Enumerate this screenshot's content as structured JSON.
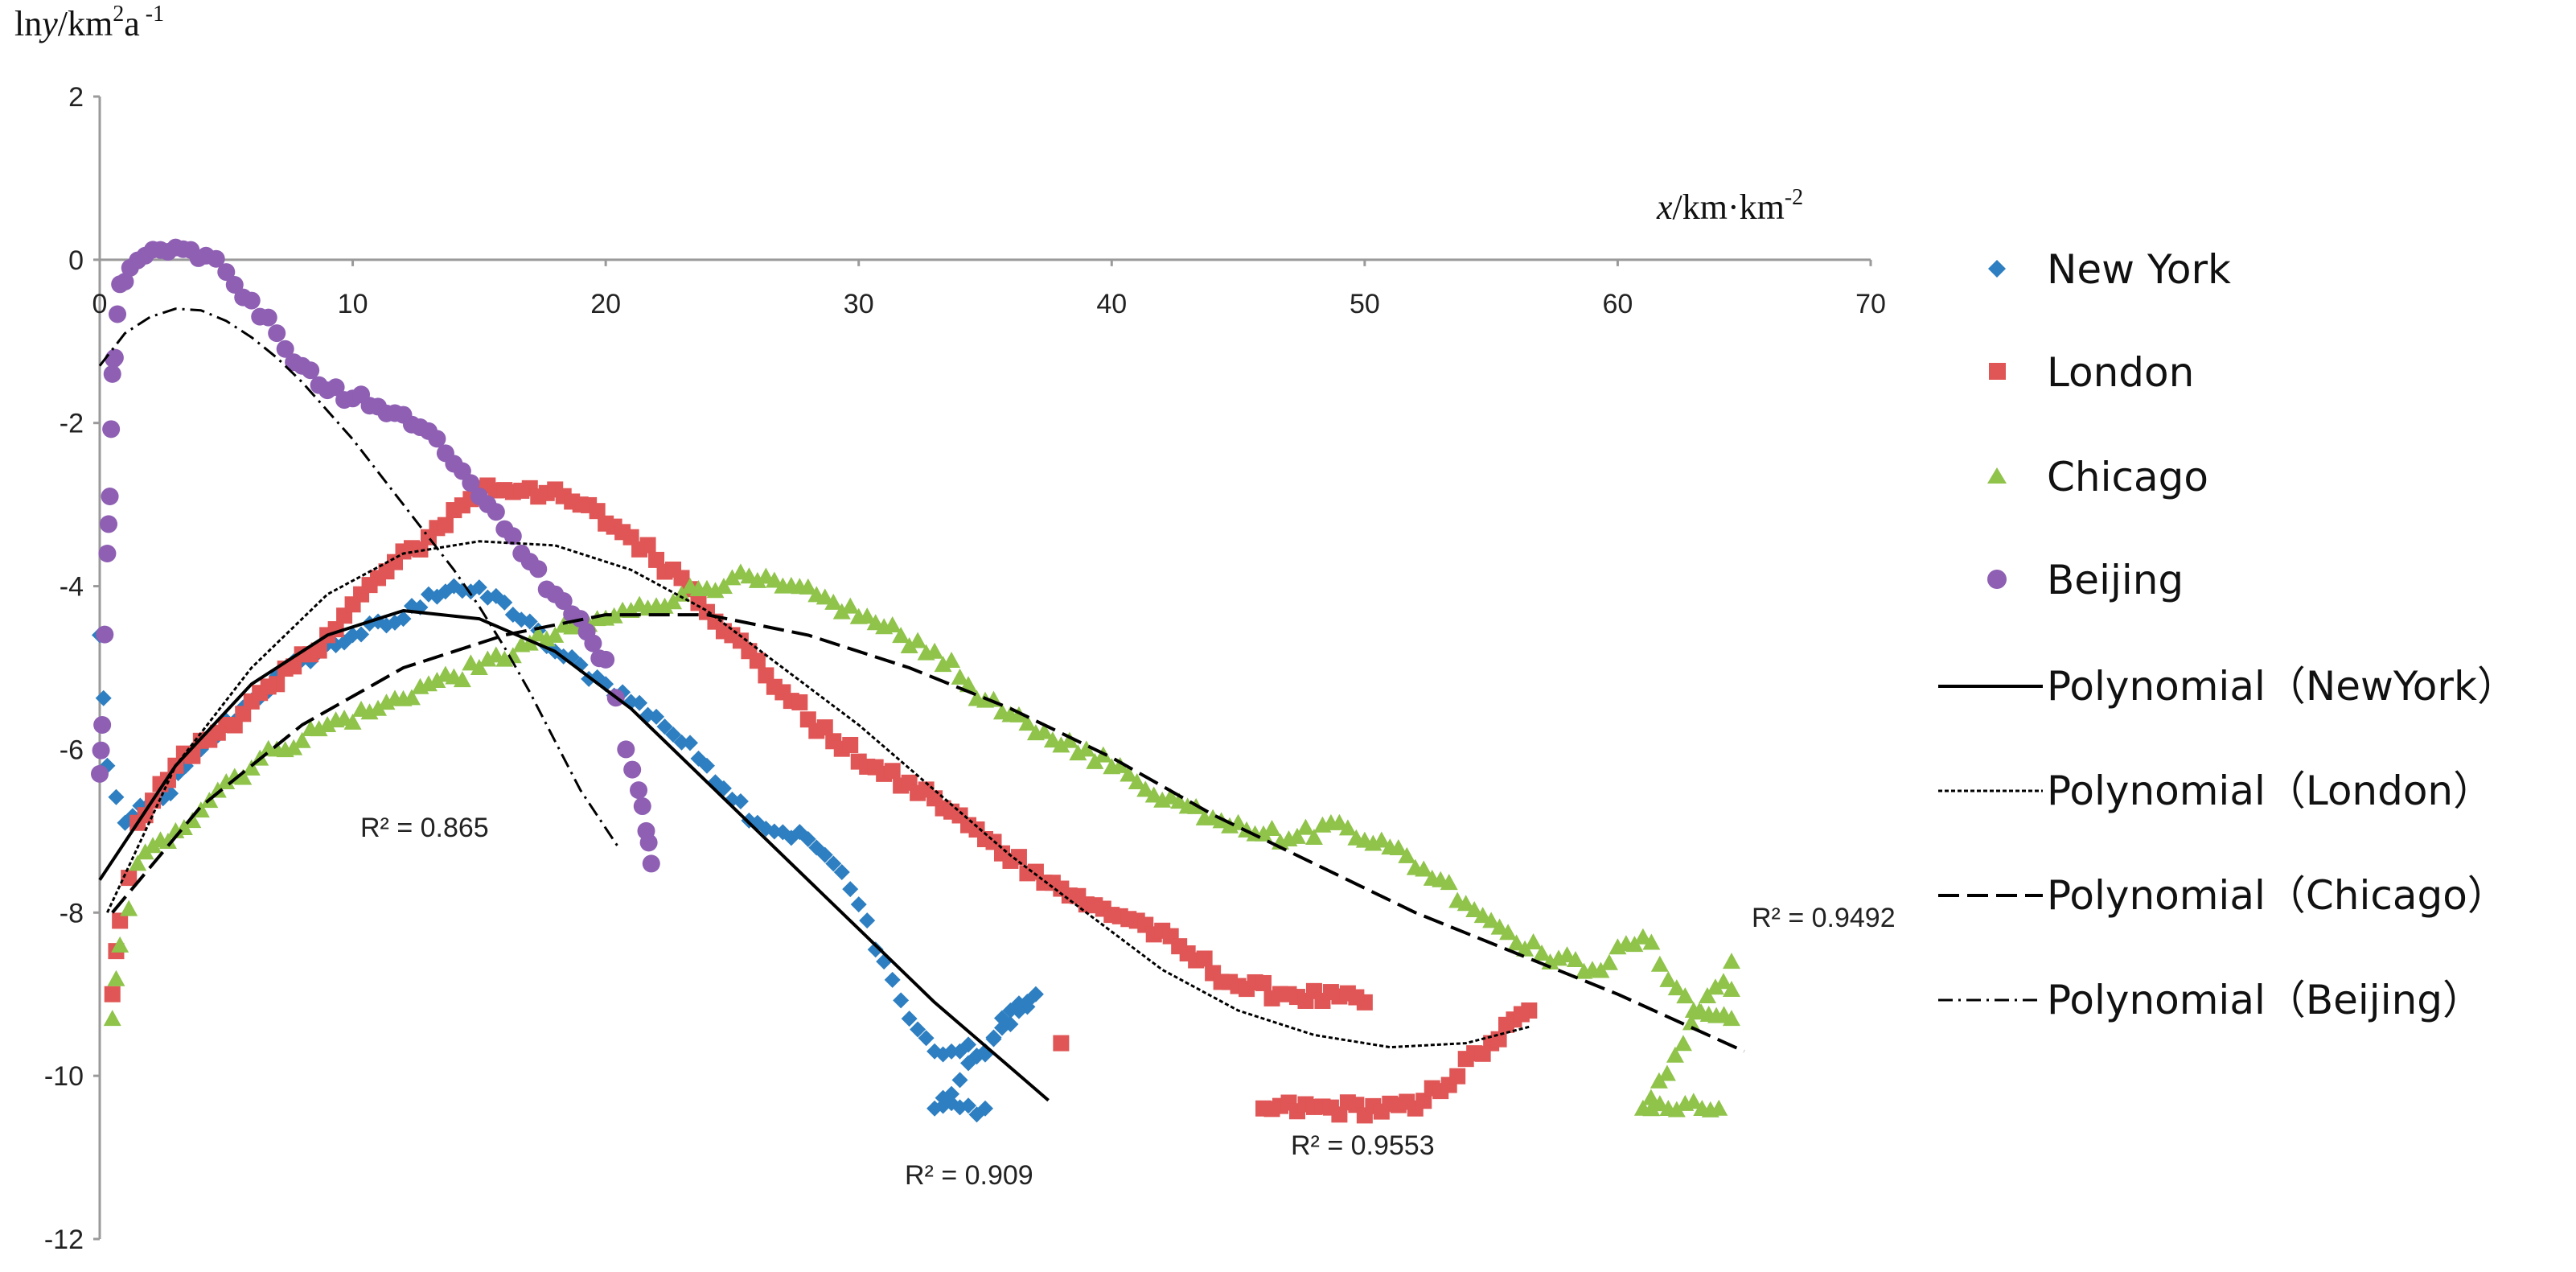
{
  "chart_data": {
    "type": "scatter",
    "title": "",
    "xlabel": {
      "italic": "x",
      "rest": "/km·km",
      "sup": "-2"
    },
    "ylabel": {
      "pre": "ln",
      "italic": "y",
      "mid": "/km",
      "sup1": "2",
      "a": "a",
      "sup2": " -1"
    },
    "xlim": [
      0,
      70
    ],
    "ylim": [
      -12,
      2
    ],
    "x_ticks": [
      "0",
      "10",
      "20",
      "30",
      "40",
      "50",
      "60",
      "70"
    ],
    "y_ticks": [
      "2",
      "0",
      "-2",
      "-4",
      "-6",
      "-8",
      "-10",
      "-12"
    ],
    "series": [
      {
        "name": "New York",
        "color": "#2e7fc1",
        "marker": "diamond",
        "key_points": [
          [
            0,
            -4.6
          ],
          [
            0.3,
            -6.2
          ],
          [
            1,
            -6.9
          ],
          [
            2.5,
            -6.6
          ],
          [
            4,
            -6.0
          ],
          [
            6,
            -5.4
          ],
          [
            8,
            -4.9
          ],
          [
            10,
            -4.6
          ],
          [
            12,
            -4.4
          ],
          [
            13,
            -4.1
          ],
          [
            14,
            -4.0
          ],
          [
            16,
            -4.2
          ],
          [
            18,
            -4.8
          ],
          [
            20,
            -5.2
          ],
          [
            22,
            -5.6
          ],
          [
            24,
            -6.2
          ],
          [
            26,
            -6.9
          ],
          [
            28,
            -7.1
          ],
          [
            29,
            -7.4
          ],
          [
            30,
            -7.9
          ],
          [
            31,
            -8.6
          ],
          [
            32,
            -9.3
          ],
          [
            33,
            -9.7
          ],
          [
            34,
            -9.7
          ],
          [
            35,
            -9.7
          ],
          [
            36,
            -9.2
          ],
          [
            37,
            -9.0
          ],
          [
            33,
            -10.4
          ],
          [
            35,
            -10.4
          ]
        ],
        "fit": {
          "label": "Polynomial（NewYork）",
          "r2": "R² = 0.909",
          "dash": "solid",
          "x_range": [
            0,
            37.5
          ],
          "points": [
            [
              0,
              -7.6
            ],
            [
              3,
              -6.2
            ],
            [
              6,
              -5.2
            ],
            [
              9,
              -4.6
            ],
            [
              12,
              -4.3
            ],
            [
              15,
              -4.4
            ],
            [
              18,
              -4.8
            ],
            [
              21,
              -5.5
            ],
            [
              24,
              -6.4
            ],
            [
              27,
              -7.3
            ],
            [
              30,
              -8.2
            ],
            [
              33,
              -9.1
            ],
            [
              36,
              -9.9
            ],
            [
              37.5,
              -10.3
            ]
          ]
        }
      },
      {
        "name": "London",
        "color": "#e05555",
        "marker": "square",
        "key_points": [
          [
            0.5,
            -9.0
          ],
          [
            0.8,
            -8.1
          ],
          [
            1.5,
            -6.9
          ],
          [
            3,
            -6.2
          ],
          [
            5,
            -5.7
          ],
          [
            7,
            -5.2
          ],
          [
            9,
            -4.6
          ],
          [
            11,
            -3.9
          ],
          [
            13,
            -3.4
          ],
          [
            15,
            -2.8
          ],
          [
            17,
            -2.8
          ],
          [
            19,
            -3.0
          ],
          [
            21,
            -3.4
          ],
          [
            23,
            -3.9
          ],
          [
            25,
            -4.6
          ],
          [
            27,
            -5.3
          ],
          [
            29,
            -5.9
          ],
          [
            31,
            -6.3
          ],
          [
            33,
            -6.6
          ],
          [
            35,
            -7.1
          ],
          [
            37,
            -7.5
          ],
          [
            39,
            -7.9
          ],
          [
            41,
            -8.1
          ],
          [
            43,
            -8.5
          ],
          [
            45,
            -8.9
          ],
          [
            47,
            -9.0
          ],
          [
            50,
            -9.1
          ],
          [
            38,
            -9.6
          ],
          [
            46,
            -10.4
          ],
          [
            52,
            -10.4
          ],
          [
            55,
            -9.6
          ],
          [
            56.5,
            -9.2
          ]
        ],
        "fit": {
          "label": "Polynomial（London）",
          "r2": "R² = 0.9553",
          "dash": "fine",
          "x_range": [
            0.3,
            56.5
          ],
          "points": [
            [
              0.3,
              -8.0
            ],
            [
              3,
              -6.2
            ],
            [
              6,
              -5.0
            ],
            [
              9,
              -4.1
            ],
            [
              12,
              -3.6
            ],
            [
              15,
              -3.45
            ],
            [
              18,
              -3.5
            ],
            [
              21,
              -3.8
            ],
            [
              24,
              -4.3
            ],
            [
              27,
              -5.0
            ],
            [
              30,
              -5.7
            ],
            [
              33,
              -6.5
            ],
            [
              36,
              -7.3
            ],
            [
              39,
              -8.0
            ],
            [
              42,
              -8.7
            ],
            [
              45,
              -9.2
            ],
            [
              48,
              -9.5
            ],
            [
              51,
              -9.65
            ],
            [
              54,
              -9.6
            ],
            [
              56.5,
              -9.4
            ]
          ]
        }
      },
      {
        "name": "Chicago",
        "color": "#8fc34a",
        "marker": "triangle",
        "key_points": [
          [
            0.5,
            -9.3
          ],
          [
            0.8,
            -8.4
          ],
          [
            1.5,
            -7.4
          ],
          [
            3,
            -7.0
          ],
          [
            5,
            -6.4
          ],
          [
            7,
            -6.0
          ],
          [
            9,
            -5.7
          ],
          [
            11,
            -5.5
          ],
          [
            13,
            -5.2
          ],
          [
            15,
            -5.0
          ],
          [
            17,
            -4.7
          ],
          [
            19,
            -4.5
          ],
          [
            21,
            -4.3
          ],
          [
            23,
            -4.1
          ],
          [
            25,
            -3.9
          ],
          [
            27,
            -4.0
          ],
          [
            29,
            -4.2
          ],
          [
            31,
            -4.5
          ],
          [
            33,
            -4.8
          ],
          [
            35,
            -5.4
          ],
          [
            37,
            -5.8
          ],
          [
            39,
            -6.0
          ],
          [
            41,
            -6.4
          ],
          [
            43,
            -6.7
          ],
          [
            45,
            -6.9
          ],
          [
            47,
            -7.1
          ],
          [
            49,
            -6.9
          ],
          [
            51,
            -7.2
          ],
          [
            53,
            -7.6
          ],
          [
            55,
            -8.1
          ],
          [
            57,
            -8.5
          ],
          [
            59,
            -8.7
          ],
          [
            61,
            -8.3
          ],
          [
            63,
            -9.2
          ],
          [
            64.5,
            -9.3
          ],
          [
            64.5,
            -8.6
          ],
          [
            61,
            -10.4
          ],
          [
            64,
            -10.4
          ]
        ],
        "fit": {
          "label": "Polynomial（Chicago）",
          "r2": "R² = 0.9492",
          "dash": "long",
          "x_range": [
            0.5,
            65
          ],
          "points": [
            [
              0.5,
              -8.0
            ],
            [
              4,
              -6.7
            ],
            [
              8,
              -5.7
            ],
            [
              12,
              -5.0
            ],
            [
              16,
              -4.6
            ],
            [
              20,
              -4.35
            ],
            [
              24,
              -4.35
            ],
            [
              28,
              -4.6
            ],
            [
              32,
              -5.0
            ],
            [
              36,
              -5.5
            ],
            [
              40,
              -6.1
            ],
            [
              44,
              -6.8
            ],
            [
              48,
              -7.4
            ],
            [
              52,
              -8.0
            ],
            [
              56,
              -8.5
            ],
            [
              60,
              -9.0
            ],
            [
              65,
              -9.7
            ]
          ]
        }
      },
      {
        "name": "Beijing",
        "color": "#8e5fb3",
        "marker": "circle",
        "key_points": [
          [
            0,
            -6.3
          ],
          [
            0.1,
            -5.7
          ],
          [
            0.3,
            -3.6
          ],
          [
            0.4,
            -2.9
          ],
          [
            0.5,
            -1.4
          ],
          [
            0.6,
            -1.2
          ],
          [
            0.8,
            -0.3
          ],
          [
            1.2,
            -0.1
          ],
          [
            1.8,
            0.05
          ],
          [
            2.4,
            0.12
          ],
          [
            3,
            0.15
          ],
          [
            3.6,
            0.12
          ],
          [
            4.2,
            0.05
          ],
          [
            5,
            -0.15
          ],
          [
            6,
            -0.5
          ],
          [
            7,
            -0.9
          ],
          [
            8,
            -1.3
          ],
          [
            9,
            -1.6
          ],
          [
            10,
            -1.7
          ],
          [
            11,
            -1.8
          ],
          [
            12,
            -1.9
          ],
          [
            13,
            -2.1
          ],
          [
            14,
            -2.5
          ],
          [
            15,
            -2.9
          ],
          [
            16,
            -3.3
          ],
          [
            17,
            -3.7
          ],
          [
            18,
            -4.1
          ],
          [
            19,
            -4.4
          ],
          [
            19.5,
            -4.7
          ],
          [
            20,
            -4.9
          ],
          [
            20.8,
            -6.0
          ],
          [
            21.3,
            -6.5
          ],
          [
            21.6,
            -7.0
          ],
          [
            21.8,
            -7.4
          ]
        ],
        "fit": {
          "label": "Polynomial（Beijing）",
          "r2": "R² = 0.865",
          "dash": "dashdot",
          "x_range": [
            0,
            20.5
          ],
          "points": [
            [
              0,
              -1.3
            ],
            [
              1,
              -0.9
            ],
            [
              2,
              -0.7
            ],
            [
              3,
              -0.6
            ],
            [
              4,
              -0.62
            ],
            [
              5,
              -0.75
            ],
            [
              6,
              -0.95
            ],
            [
              7,
              -1.2
            ],
            [
              8,
              -1.5
            ],
            [
              9,
              -1.85
            ],
            [
              10,
              -2.2
            ],
            [
              11,
              -2.6
            ],
            [
              12,
              -3.0
            ],
            [
              13,
              -3.4
            ],
            [
              14,
              -3.8
            ],
            [
              15,
              -4.25
            ],
            [
              16,
              -4.75
            ],
            [
              17,
              -5.3
            ],
            [
              18,
              -5.9
            ],
            [
              19,
              -6.5
            ],
            [
              20.5,
              -7.2
            ]
          ]
        }
      }
    ]
  }
}
